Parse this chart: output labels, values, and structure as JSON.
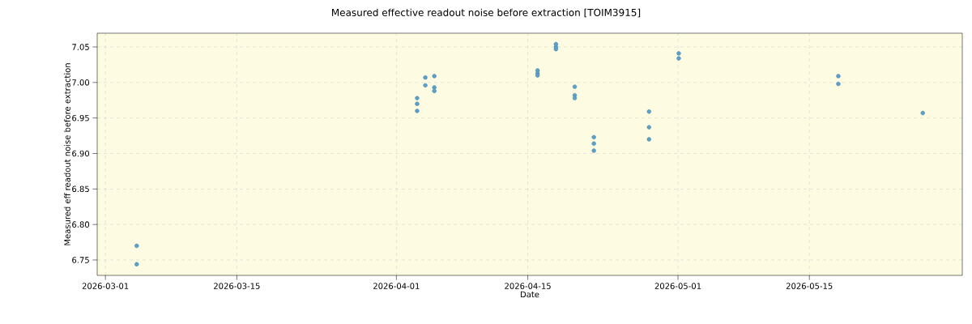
{
  "chart_data": {
    "type": "scatter",
    "title": "Measured effective readout noise before extraction [TOIM3915]",
    "xlabel": "Date",
    "ylabel": "Measured eff readout noise before extraction",
    "x": [
      "2026-03-04T08:00",
      "2026-03-04T08:00",
      "2026-04-03T05:00",
      "2026-04-03T05:00",
      "2026-04-03T05:00",
      "2026-04-04T02:00",
      "2026-04-04T02:00",
      "2026-04-05T01:00",
      "2026-04-05T01:00",
      "2026-04-05T01:00",
      "2026-04-16T01:00",
      "2026-04-16T01:00",
      "2026-04-16T01:00",
      "2026-04-18T00:00",
      "2026-04-18T00:00",
      "2026-04-18T00:00",
      "2026-04-20T00:00",
      "2026-04-20T00:00",
      "2026-04-20T00:00",
      "2026-04-22T01:00",
      "2026-04-22T01:00",
      "2026-04-22T01:00",
      "2026-04-27T22:00",
      "2026-04-27T22:00",
      "2026-04-27T22:00",
      "2026-05-01T02:00",
      "2026-05-01T02:00",
      "2026-05-18T02:00",
      "2026-05-18T02:00",
      "2026-05-27T02:00"
    ],
    "values": [
      6.77,
      6.744,
      6.978,
      6.97,
      6.96,
      7.007,
      6.996,
      7.009,
      6.993,
      6.988,
      7.017,
      7.013,
      7.01,
      7.054,
      7.05,
      7.047,
      6.994,
      6.982,
      6.978,
      6.923,
      6.914,
      6.904,
      6.959,
      6.937,
      6.92,
      7.041,
      7.034,
      7.009,
      6.998,
      6.957
    ],
    "color": "#5ba0c8",
    "marker": "circle",
    "grid": true,
    "xlim": [
      "2026-02-28T03:00",
      "2026-05-31T07:00"
    ],
    "xticks": [
      "2026-03-01",
      "2026-03-15",
      "2026-04-01",
      "2026-04-15",
      "2026-05-01",
      "2026-05-15"
    ],
    "ylim": [
      6.7283,
      7.0694
    ],
    "yticks": [
      {
        "value": 6.75,
        "label": "6.75"
      },
      {
        "value": 6.8,
        "label": "6.80"
      },
      {
        "value": 6.85,
        "label": "6.85"
      },
      {
        "value": 6.9,
        "label": "6.90"
      },
      {
        "value": 6.95,
        "label": "6.95"
      },
      {
        "value": 7.0,
        "label": "7.00"
      },
      {
        "value": 7.05,
        "label": "7.05"
      }
    ]
  }
}
